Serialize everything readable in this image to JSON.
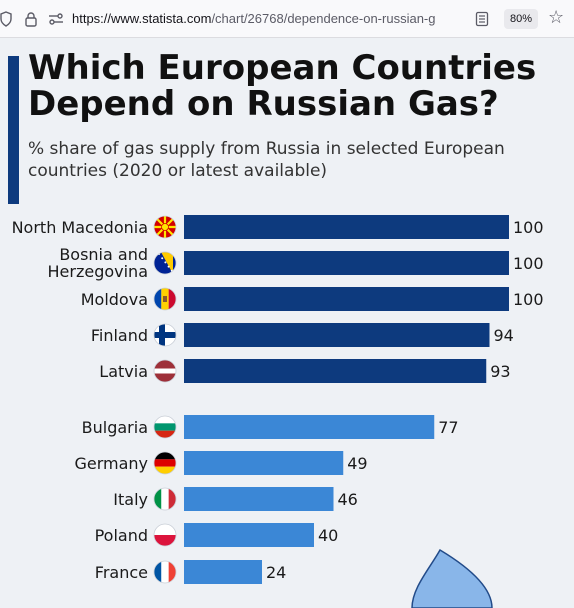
{
  "browser": {
    "url_host": "https://www.statista.com",
    "url_path": "/chart/26768/dependence-on-russian-g",
    "zoom": "80%"
  },
  "header": {
    "title": "Which European Countries Depend on Russian Gas?",
    "subtitle": "% share of gas supply from Russia in selected European countries (2020 or latest available)"
  },
  "colors": {
    "accent": "#0d3a7e",
    "group1": "#0d3a7e",
    "group2": "#3b87d6"
  },
  "chart_data": {
    "type": "bar",
    "orientation": "horizontal",
    "title": "Which European Countries Depend on Russian Gas?",
    "subtitle": "% share of gas supply from Russia in selected European countries (2020 or latest available)",
    "xlim": [
      0,
      100
    ],
    "grid": false,
    "categories": [
      "North Macedonia",
      "Bosnia and Herzegovina",
      "Moldova",
      "Finland",
      "Latvia",
      "Bulgaria",
      "Germany",
      "Italy",
      "Poland",
      "France"
    ],
    "values": [
      100,
      100,
      100,
      94,
      93,
      77,
      49,
      46,
      40,
      24
    ],
    "value_labels": [
      "100",
      "100",
      "100",
      "94",
      "93",
      "77",
      "49",
      "46",
      "40",
      "24"
    ],
    "groups": [
      0,
      0,
      0,
      0,
      0,
      1,
      1,
      1,
      1,
      1
    ],
    "flags": [
      "north-macedonia-flag-icon",
      "bosnia-flag-icon",
      "moldova-flag-icon",
      "finland-flag-icon",
      "latvia-flag-icon",
      "bulgaria-flag-icon",
      "germany-flag-icon",
      "italy-flag-icon",
      "poland-flag-icon",
      "france-flag-icon"
    ]
  }
}
